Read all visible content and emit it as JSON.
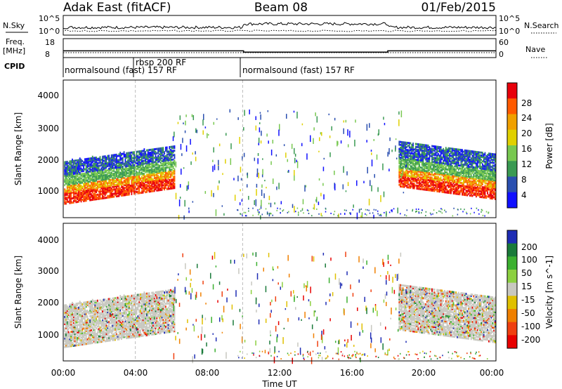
{
  "header": {
    "station": "Adak East (fitACF)",
    "beam": "Beam 08",
    "date": "01/Feb/2015"
  },
  "noise_panel": {
    "left_label": "N.Sky",
    "right_label": "N.Search",
    "left_ticks": [
      "10^5",
      "10^0"
    ],
    "right_ticks": [
      "10^5",
      "10^0"
    ]
  },
  "freq_panel": {
    "left_label_1": "Freq.",
    "left_label_2": "[MHz]",
    "left_ticks": [
      "18",
      "8"
    ],
    "right_label": "Nave",
    "right_ticks": [
      "60",
      "0"
    ]
  },
  "cpid_panel": {
    "label": "CPID",
    "segments": [
      {
        "text": "normalsound (fast) 157 RF"
      },
      {
        "text": "rbsp 200 RF"
      },
      {
        "text": "normalsound (fast) 157 RF"
      }
    ]
  },
  "axes": {
    "ylabel": "Slant Range [km]",
    "xlabel": "Time UT",
    "y_ticks": [
      "4000",
      "3000",
      "2000",
      "1000"
    ],
    "x_ticks": [
      "00:00",
      "04:00",
      "08:00",
      "12:00",
      "16:00",
      "20:00",
      "00:00"
    ]
  },
  "power_scale": {
    "label": "Power [dB]",
    "ticks": [
      "28",
      "24",
      "20",
      "16",
      "12",
      "8",
      "4"
    ],
    "colors": [
      "#e8000b",
      "#ff5a00",
      "#f0a000",
      "#e0d000",
      "#78c850",
      "#3a9a52",
      "#2a4fb0",
      "#1010ff"
    ]
  },
  "velocity_scale": {
    "label": "Velocity [m s^-1]",
    "ticks": [
      "200",
      "100",
      "50",
      "15",
      "-15",
      "-50",
      "-100",
      "-200"
    ],
    "colors": [
      "#1e2cb4",
      "#1a7a3a",
      "#3cb030",
      "#8cd040",
      "#c8c8c0",
      "#e0c000",
      "#f08000",
      "#f04010",
      "#e80000"
    ]
  },
  "chart_data": [
    {
      "type": "heatmap",
      "title": "Power [dB]",
      "xlabel": "Time UT",
      "ylabel": "Slant Range [km]",
      "xlim": [
        "00:00",
        "24:00"
      ],
      "ylim": [
        180,
        4500
      ],
      "zlim": [
        0,
        30
      ],
      "features": [
        {
          "start": "00:00",
          "end": "06:30",
          "core_range_km": [
            900,
            1400
          ],
          "peak_db": 28
        },
        {
          "start": "18:30",
          "end": "24:00",
          "core_range_km": [
            900,
            1500
          ],
          "peak_db": 28
        }
      ]
    },
    {
      "type": "heatmap",
      "title": "Velocity [m s^-1]",
      "xlabel": "Time UT",
      "ylabel": "Slant Range [km]",
      "xlim": [
        "00:00",
        "24:00"
      ],
      "ylim": [
        180,
        4500
      ],
      "zlim": [
        -200,
        200
      ]
    },
    {
      "type": "line",
      "title": "Frequency",
      "ylabel": "Freq. [MHz]",
      "x": [
        "00:00",
        "10:00",
        "10:00",
        "18:00",
        "18:00",
        "24:00"
      ],
      "y": [
        11,
        11,
        10,
        10,
        11,
        11
      ]
    }
  ]
}
